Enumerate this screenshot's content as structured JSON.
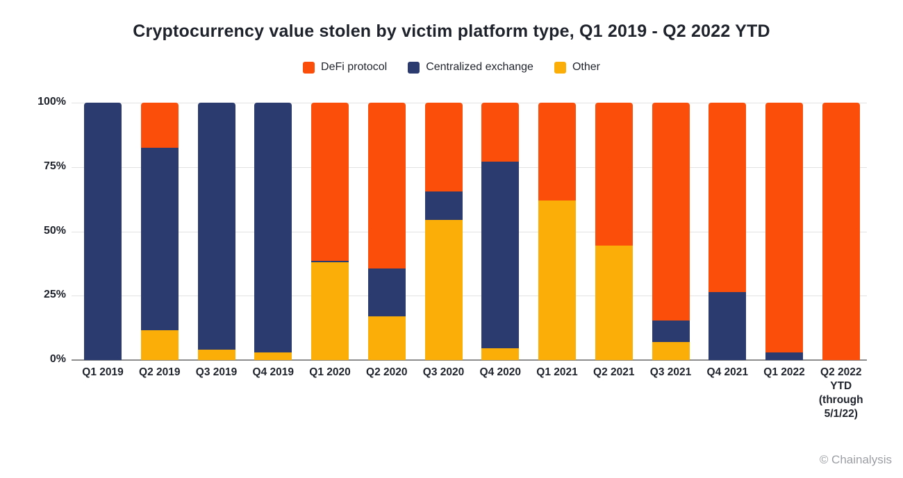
{
  "title": "Cryptocurrency value stolen by victim platform type, Q1 2019 - Q2 2022 YTD",
  "credit": "© Chainalysis",
  "colors": {
    "defi": "#FC4E0B",
    "centralized_exchange": "#2B3A6F",
    "other": "#FCAE08",
    "gridline": "#E2E2E2",
    "axis_line": "#8C8C8C",
    "text": "#1E222B",
    "credit_text": "#9B9EA3"
  },
  "legend": {
    "items": [
      {
        "label": "DeFi protocol",
        "color": "#FC4E0B"
      },
      {
        "label": "Centralized exchange",
        "color": "#2B3A6F"
      },
      {
        "label": "Other",
        "color": "#FCAE08"
      }
    ]
  },
  "y_axis": {
    "tick_labels": [
      "100%",
      "75%",
      "50%",
      "25%",
      "0%"
    ],
    "tick_values": [
      100,
      75,
      50,
      25,
      0
    ]
  },
  "chart_data": {
    "type": "bar",
    "stacked": true,
    "unit": "percent",
    "title": "Cryptocurrency value stolen by victim platform type, Q1 2019 - Q2 2022 YTD",
    "categories": [
      "Q1 2019",
      "Q2 2019",
      "Q3 2019",
      "Q4 2019",
      "Q1 2020",
      "Q2 2020",
      "Q3 2020",
      "Q4 2020",
      "Q1 2021",
      "Q2 2021",
      "Q3 2021",
      "Q4 2021",
      "Q1 2022",
      "Q2 2022\nYTD\n(through\n5/1/22)"
    ],
    "stack_order_bottom_to_top": [
      "Other",
      "Centralized exchange",
      "DeFi protocol"
    ],
    "series": [
      {
        "name": "DeFi protocol",
        "color": "#FC4E0B",
        "values": [
          0,
          17.5,
          0,
          0,
          61.5,
          64.5,
          34.5,
          23,
          38,
          55.5,
          84.5,
          73.5,
          97,
          100
        ]
      },
      {
        "name": "Centralized exchange",
        "color": "#2B3A6F",
        "values": [
          100,
          71,
          96,
          97,
          0.5,
          18.5,
          11,
          72.5,
          0,
          0,
          8.5,
          26.5,
          3,
          0
        ]
      },
      {
        "name": "Other",
        "color": "#FCAE08",
        "values": [
          0,
          11.5,
          4,
          3,
          38,
          17,
          54.5,
          4.5,
          62,
          44.5,
          7,
          0,
          0,
          0
        ]
      }
    ],
    "ylim": [
      0,
      100
    ],
    "grid": "horizontal",
    "legend_position": "top"
  }
}
